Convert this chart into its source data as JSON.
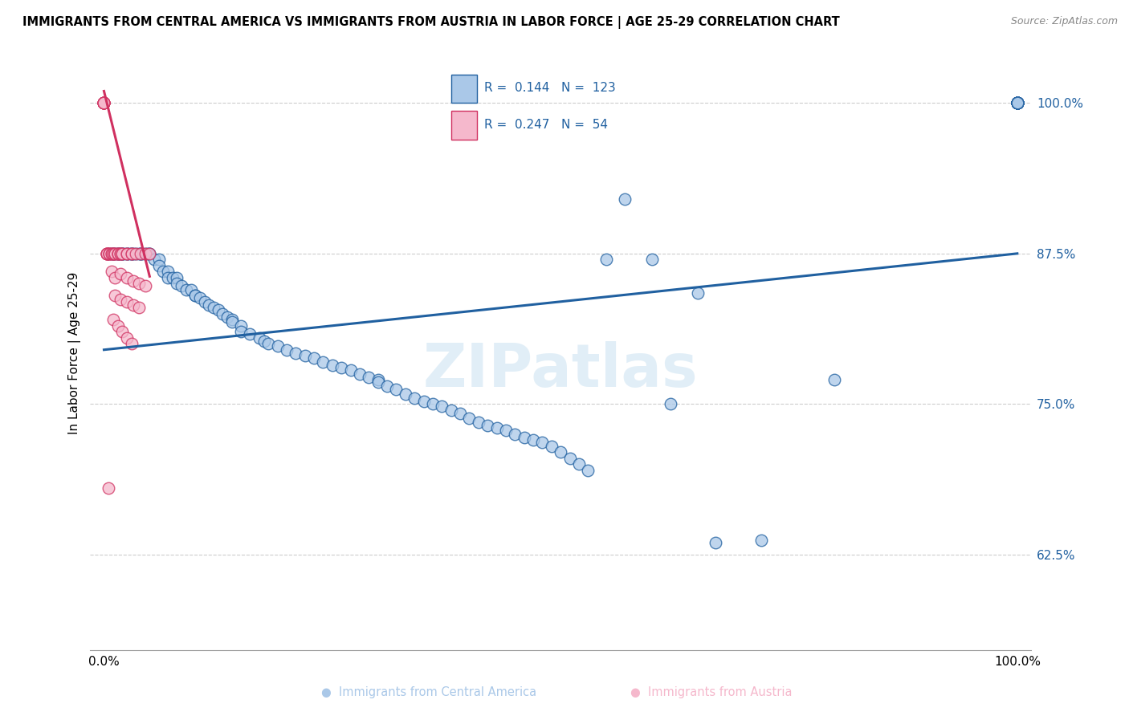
{
  "title": "IMMIGRANTS FROM CENTRAL AMERICA VS IMMIGRANTS FROM AUSTRIA IN LABOR FORCE | AGE 25-29 CORRELATION CHART",
  "source": "Source: ZipAtlas.com",
  "ylabel": "In Labor Force | Age 25-29",
  "color_blue": "#aac8e8",
  "color_pink": "#f5b8cc",
  "line_blue": "#2060a0",
  "line_pink": "#d03060",
  "legend1_r": "0.144",
  "legend1_n": "123",
  "legend2_r": "0.247",
  "legend2_n": "54",
  "xlim": [
    -0.015,
    1.015
  ],
  "ylim": [
    0.545,
    1.04
  ],
  "blue_trendline_x": [
    0.0,
    1.0
  ],
  "blue_trendline_y": [
    0.795,
    0.875
  ],
  "pink_trendline_x": [
    0.0,
    0.05
  ],
  "pink_trendline_y": [
    1.01,
    0.856
  ],
  "blue_x": [
    0.005,
    0.008,
    0.01,
    0.012,
    0.015,
    0.015,
    0.018,
    0.02,
    0.02,
    0.022,
    0.025,
    0.025,
    0.028,
    0.03,
    0.03,
    0.032,
    0.035,
    0.038,
    0.04,
    0.04,
    0.042,
    0.045,
    0.048,
    0.05,
    0.05,
    0.055,
    0.06,
    0.06,
    0.065,
    0.07,
    0.07,
    0.075,
    0.08,
    0.08,
    0.085,
    0.09,
    0.095,
    0.1,
    0.1,
    0.105,
    0.11,
    0.115,
    0.12,
    0.125,
    0.13,
    0.135,
    0.14,
    0.14,
    0.15,
    0.15,
    0.16,
    0.17,
    0.175,
    0.18,
    0.19,
    0.2,
    0.21,
    0.22,
    0.23,
    0.24,
    0.25,
    0.26,
    0.27,
    0.28,
    0.29,
    0.3,
    0.3,
    0.31,
    0.32,
    0.33,
    0.34,
    0.35,
    0.36,
    0.37,
    0.38,
    0.39,
    0.4,
    0.41,
    0.42,
    0.43,
    0.44,
    0.45,
    0.46,
    0.47,
    0.48,
    0.49,
    0.5,
    0.51,
    0.52,
    0.53,
    0.55,
    0.57,
    0.6,
    0.62,
    0.65,
    0.67,
    0.72,
    0.8,
    1.0,
    1.0,
    1.0,
    1.0,
    1.0,
    1.0,
    1.0,
    1.0,
    1.0,
    1.0,
    1.0,
    1.0,
    1.0,
    1.0,
    1.0,
    1.0,
    1.0,
    1.0,
    1.0,
    1.0,
    1.0,
    1.0,
    1.0,
    1.0,
    1.0
  ],
  "blue_y": [
    0.875,
    0.875,
    0.875,
    0.875,
    0.875,
    0.875,
    0.875,
    0.875,
    0.875,
    0.875,
    0.875,
    0.875,
    0.875,
    0.875,
    0.875,
    0.875,
    0.875,
    0.875,
    0.875,
    0.875,
    0.875,
    0.875,
    0.875,
    0.875,
    0.875,
    0.87,
    0.87,
    0.865,
    0.86,
    0.86,
    0.855,
    0.855,
    0.855,
    0.85,
    0.848,
    0.845,
    0.845,
    0.84,
    0.84,
    0.838,
    0.835,
    0.832,
    0.83,
    0.828,
    0.825,
    0.822,
    0.82,
    0.818,
    0.815,
    0.81,
    0.808,
    0.805,
    0.802,
    0.8,
    0.798,
    0.795,
    0.792,
    0.79,
    0.788,
    0.785,
    0.782,
    0.78,
    0.778,
    0.775,
    0.772,
    0.77,
    0.768,
    0.765,
    0.762,
    0.758,
    0.755,
    0.752,
    0.75,
    0.748,
    0.745,
    0.742,
    0.738,
    0.735,
    0.732,
    0.73,
    0.728,
    0.725,
    0.722,
    0.72,
    0.718,
    0.715,
    0.71,
    0.705,
    0.7,
    0.695,
    0.87,
    0.92,
    0.87,
    0.75,
    0.842,
    0.635,
    0.637,
    0.77,
    1.0,
    1.0,
    1.0,
    1.0,
    1.0,
    1.0,
    1.0,
    1.0,
    1.0,
    1.0,
    1.0,
    1.0,
    1.0,
    1.0,
    1.0,
    1.0,
    1.0,
    1.0,
    1.0,
    1.0,
    1.0,
    1.0,
    1.0,
    1.0,
    1.0
  ],
  "pink_x": [
    0.0,
    0.0,
    0.0,
    0.0,
    0.0,
    0.0,
    0.0,
    0.0,
    0.003,
    0.003,
    0.003,
    0.003,
    0.006,
    0.006,
    0.006,
    0.008,
    0.008,
    0.01,
    0.01,
    0.012,
    0.012,
    0.015,
    0.015,
    0.015,
    0.018,
    0.018,
    0.02,
    0.02,
    0.025,
    0.025,
    0.03,
    0.03,
    0.035,
    0.04,
    0.045,
    0.05,
    0.008,
    0.012,
    0.018,
    0.025,
    0.032,
    0.038,
    0.045,
    0.012,
    0.018,
    0.025,
    0.032,
    0.038,
    0.01,
    0.015,
    0.02,
    0.025,
    0.03,
    0.005
  ],
  "pink_y": [
    1.0,
    1.0,
    1.0,
    1.0,
    1.0,
    1.0,
    1.0,
    1.0,
    0.875,
    0.875,
    0.875,
    0.875,
    0.875,
    0.875,
    0.875,
    0.875,
    0.875,
    0.875,
    0.875,
    0.875,
    0.875,
    0.875,
    0.875,
    0.875,
    0.875,
    0.875,
    0.875,
    0.875,
    0.875,
    0.875,
    0.875,
    0.875,
    0.875,
    0.875,
    0.875,
    0.875,
    0.86,
    0.855,
    0.858,
    0.855,
    0.852,
    0.85,
    0.848,
    0.84,
    0.837,
    0.835,
    0.832,
    0.83,
    0.82,
    0.815,
    0.81,
    0.805,
    0.8,
    0.68
  ]
}
